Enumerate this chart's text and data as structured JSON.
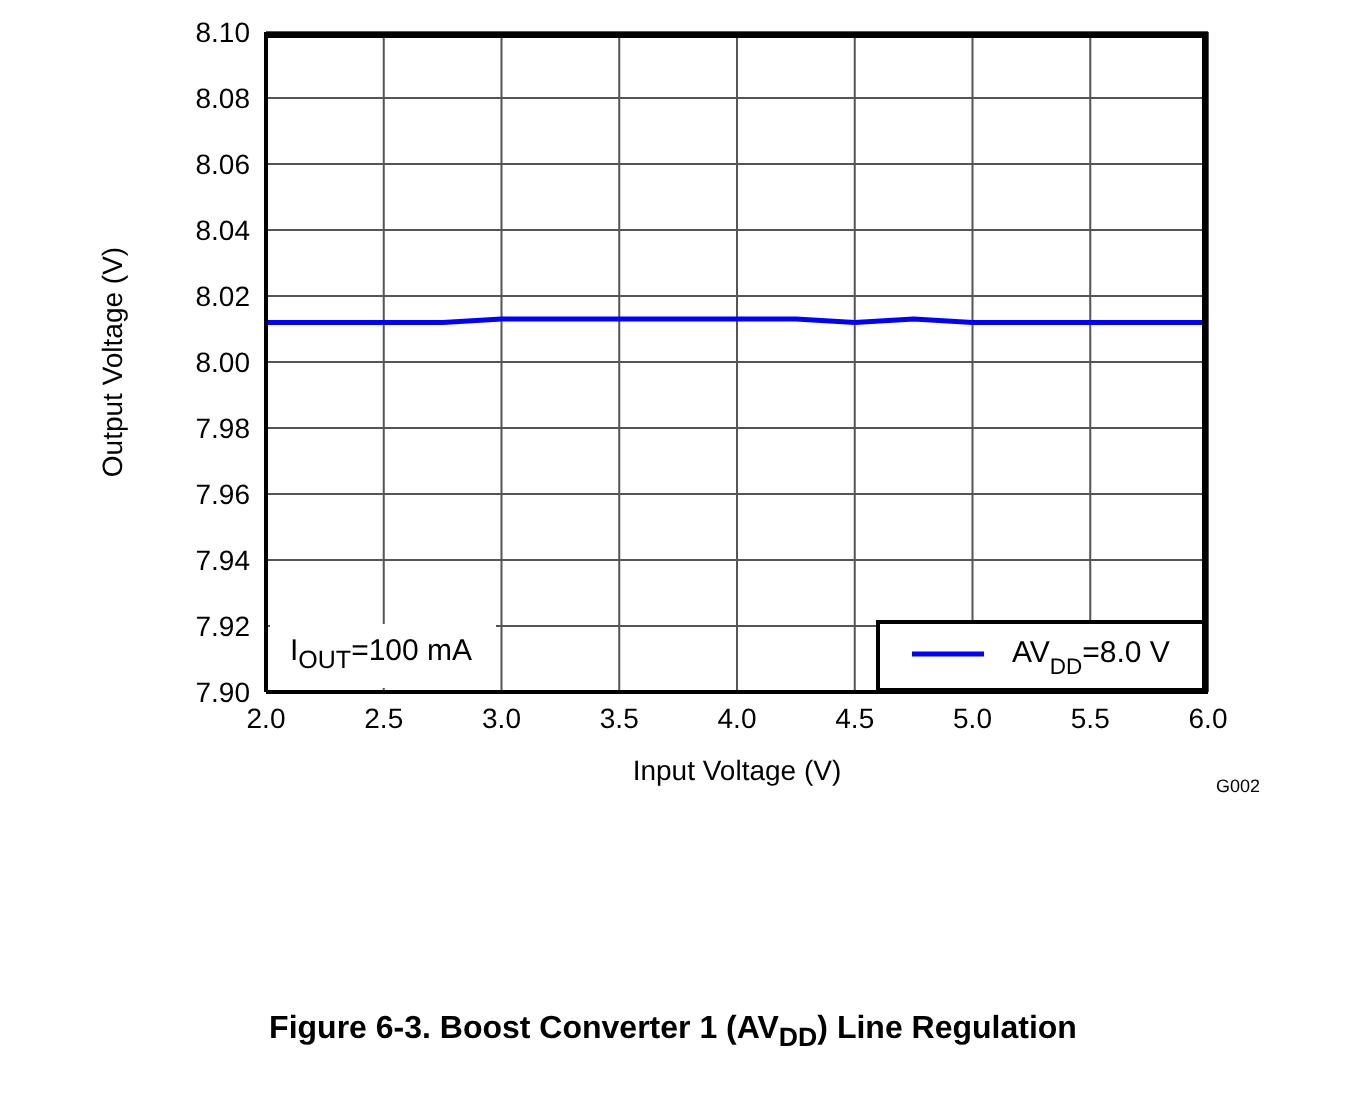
{
  "chart_data": {
    "type": "line",
    "title": "Figure 6-3. Boost Converter 1 (AV$_{DD}$) Line Regulation",
    "xlabel": "Input Voltage (V)",
    "ylabel": "Output Voltage (V)",
    "x": [
      2.0,
      2.25,
      2.5,
      2.75,
      3.0,
      3.25,
      3.5,
      3.75,
      4.0,
      4.25,
      4.5,
      4.75,
      5.0,
      5.25,
      5.5,
      5.75,
      6.0
    ],
    "series": [
      {
        "name": "AV$_{DD}$=8.0 V",
        "color": "#0000ff",
        "values": [
          8.012,
          8.012,
          8.012,
          8.012,
          8.013,
          8.013,
          8.013,
          8.013,
          8.013,
          8.013,
          8.012,
          8.013,
          8.012,
          8.012,
          8.012,
          8.012,
          8.012
        ]
      }
    ],
    "xlim": [
      2.0,
      6.0
    ],
    "xticks": [
      {
        "value": 2,
        "label": "2.0"
      },
      {
        "value": 2.5,
        "label": "2.5"
      },
      {
        "value": 3,
        "label": "3.0"
      },
      {
        "value": 3.5,
        "label": "3.5"
      },
      {
        "value": 4,
        "label": "4.0"
      },
      {
        "value": 4.5,
        "label": "4.5"
      },
      {
        "value": 5,
        "label": "5.0"
      },
      {
        "value": 5.5,
        "label": "5.5"
      },
      {
        "value": 6,
        "label": "6.0"
      }
    ],
    "ylim": [
      7.9,
      8.1
    ],
    "yticks": [
      {
        "value": 7.9,
        "label": "7.90"
      },
      {
        "value": 7.92,
        "label": "7.92"
      },
      {
        "value": 7.94,
        "label": "7.94"
      },
      {
        "value": 7.96,
        "label": "7.96"
      },
      {
        "value": 7.98,
        "label": "7.98"
      },
      {
        "value": 8.0,
        "label": "8.00"
      },
      {
        "value": 8.02,
        "label": "8.02"
      },
      {
        "value": 8.04,
        "label": "8.04"
      },
      {
        "value": 8.06,
        "label": "8.06"
      },
      {
        "value": 8.08,
        "label": "8.08"
      },
      {
        "value": 8.1,
        "label": "8.10"
      }
    ],
    "annotations": [
      "I$_{OUT}$=100 mA",
      "G002"
    ],
    "grid": true,
    "legend": "bottom right",
    "marker": "none",
    "line_style": "solid"
  }
}
